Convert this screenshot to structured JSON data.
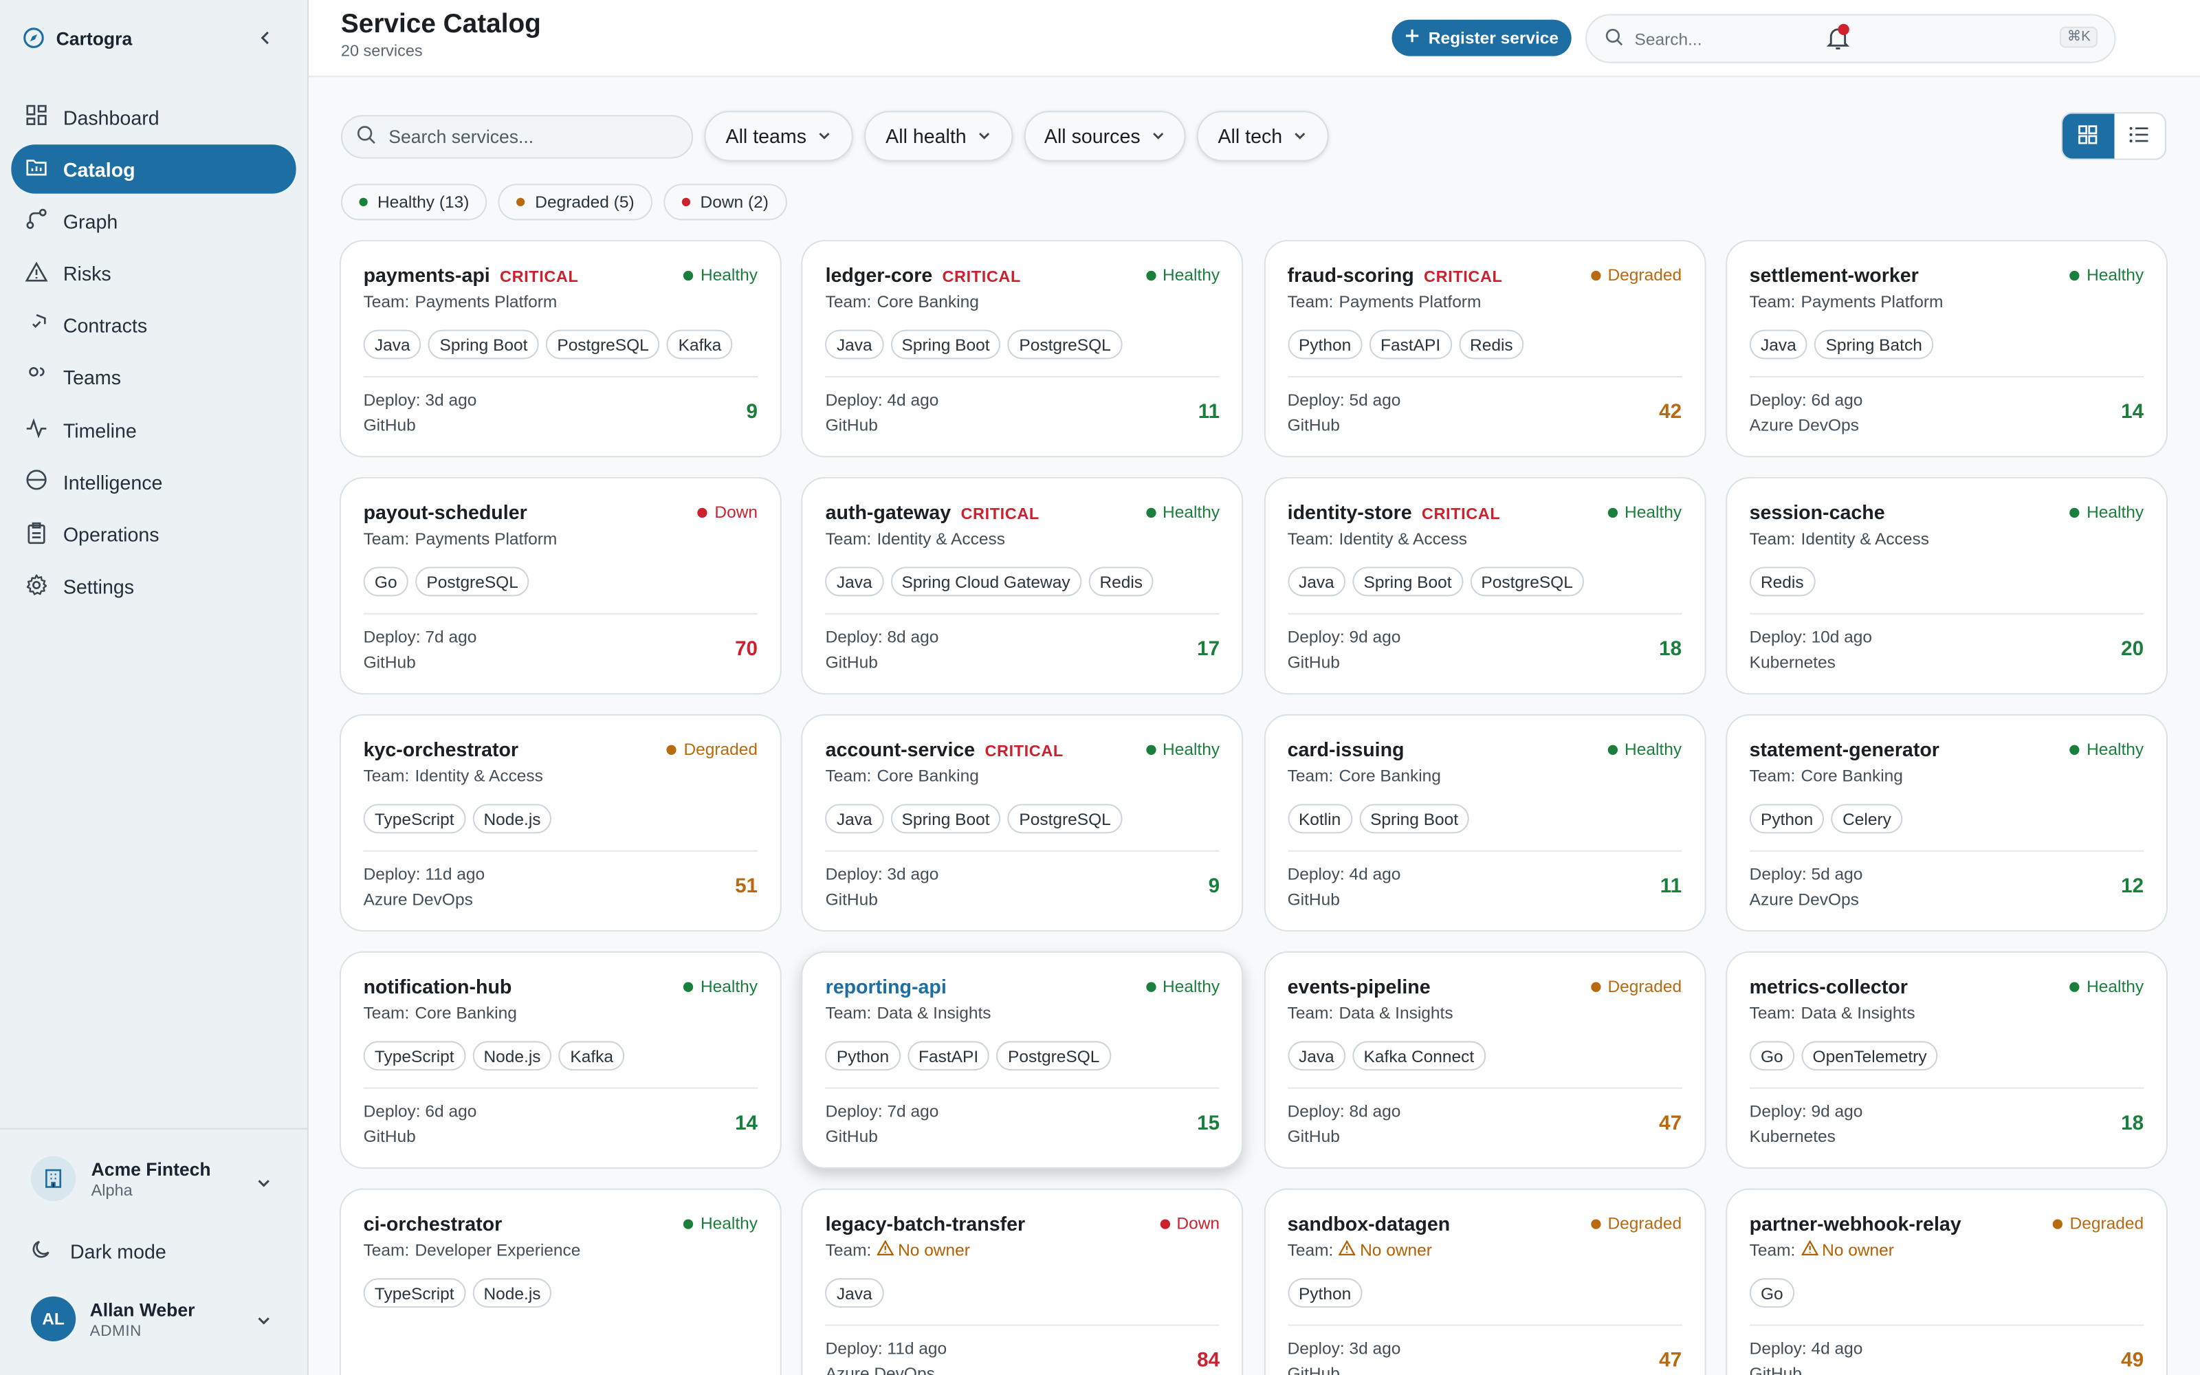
{
  "app": {
    "name": "Cartogra"
  },
  "sidebar": {
    "items": [
      {
        "label": "Dashboard",
        "icon": "dashboard-icon",
        "active": false
      },
      {
        "label": "Catalog",
        "icon": "catalog-icon",
        "active": true
      },
      {
        "label": "Graph",
        "icon": "graph-icon",
        "active": false
      },
      {
        "label": "Risks",
        "icon": "warning-icon",
        "active": false
      },
      {
        "label": "Contracts",
        "icon": "shield-icon",
        "active": false
      },
      {
        "label": "Teams",
        "icon": "users-icon",
        "active": false
      },
      {
        "label": "Timeline",
        "icon": "activity-icon",
        "active": false
      },
      {
        "label": "Intelligence",
        "icon": "globe-icon",
        "active": false
      },
      {
        "label": "Operations",
        "icon": "clipboard-icon",
        "active": false
      },
      {
        "label": "Settings",
        "icon": "gear-icon",
        "active": false
      }
    ],
    "org": {
      "name": "Acme Fintech",
      "sub": "Alpha"
    },
    "dark_mode_label": "Dark mode",
    "user": {
      "initials": "AL",
      "name": "Allan Weber",
      "role": "ADMIN"
    }
  },
  "header": {
    "title": "Service Catalog",
    "subtitle": "20 services",
    "register_label": "Register service",
    "search_placeholder": "Search...",
    "search_shortcut": "⌘K"
  },
  "filters": {
    "search_placeholder": "Search services...",
    "teams": "All teams",
    "health": "All health",
    "sources": "All sources",
    "tech": "All tech"
  },
  "health_chips": [
    {
      "label": "Healthy (13)",
      "color": "#1a7f3c"
    },
    {
      "label": "Degraded (5)",
      "color": "#b86a10"
    },
    {
      "label": "Down (2)",
      "color": "#cc2230"
    }
  ],
  "colors": {
    "accent": "#1d6fa3",
    "healthy": "#1a7f3c",
    "degraded": "#b86a10",
    "down": "#cc2230",
    "critical": "#cc2230",
    "warning": "#b35f00"
  },
  "services": [
    {
      "name": "payments-api",
      "critical": "CRITICAL",
      "health": "Healthy",
      "team_prefix": "Team: ",
      "team": "Payments Platform",
      "tags": [
        "Java",
        "Spring Boot",
        "PostgreSQL",
        "Kafka"
      ],
      "deploy": "Deploy: 3d ago",
      "source": "GitHub",
      "score": "9"
    },
    {
      "name": "ledger-core",
      "critical": "CRITICAL",
      "health": "Healthy",
      "team_prefix": "Team: ",
      "team": "Core Banking",
      "tags": [
        "Java",
        "Spring Boot",
        "PostgreSQL"
      ],
      "deploy": "Deploy: 4d ago",
      "source": "GitHub",
      "score": "11"
    },
    {
      "name": "fraud-scoring",
      "critical": "CRITICAL",
      "health": "Degraded",
      "team_prefix": "Team: ",
      "team": "Payments Platform",
      "tags": [
        "Python",
        "FastAPI",
        "Redis"
      ],
      "deploy": "Deploy: 5d ago",
      "source": "GitHub",
      "score": "42"
    },
    {
      "name": "settlement-worker",
      "critical": "",
      "health": "Healthy",
      "team_prefix": "Team: ",
      "team": "Payments Platform",
      "tags": [
        "Java",
        "Spring Batch"
      ],
      "deploy": "Deploy: 6d ago",
      "source": "Azure DevOps",
      "score": "14"
    },
    {
      "name": "payout-scheduler",
      "critical": "",
      "health": "Down",
      "team_prefix": "Team: ",
      "team": "Payments Platform",
      "tags": [
        "Go",
        "PostgreSQL"
      ],
      "deploy": "Deploy: 7d ago",
      "source": "GitHub",
      "score": "70"
    },
    {
      "name": "auth-gateway",
      "critical": "CRITICAL",
      "health": "Healthy",
      "team_prefix": "Team: ",
      "team": "Identity & Access",
      "tags": [
        "Java",
        "Spring Cloud Gateway",
        "Redis"
      ],
      "deploy": "Deploy: 8d ago",
      "source": "GitHub",
      "score": "17"
    },
    {
      "name": "identity-store",
      "critical": "CRITICAL",
      "health": "Healthy",
      "team_prefix": "Team: ",
      "team": "Identity & Access",
      "tags": [
        "Java",
        "Spring Boot",
        "PostgreSQL"
      ],
      "deploy": "Deploy: 9d ago",
      "source": "GitHub",
      "score": "18"
    },
    {
      "name": "session-cache",
      "critical": "",
      "health": "Healthy",
      "team_prefix": "Team: ",
      "team": "Identity & Access",
      "tags": [
        "Redis"
      ],
      "deploy": "Deploy: 10d ago",
      "source": "Kubernetes",
      "score": "20"
    },
    {
      "name": "kyc-orchestrator",
      "critical": "",
      "health": "Degraded",
      "team_prefix": "Team: ",
      "team": "Identity & Access",
      "tags": [
        "TypeScript",
        "Node.js"
      ],
      "deploy": "Deploy: 11d ago",
      "source": "Azure DevOps",
      "score": "51"
    },
    {
      "name": "account-service",
      "critical": "CRITICAL",
      "health": "Healthy",
      "team_prefix": "Team: ",
      "team": "Core Banking",
      "tags": [
        "Java",
        "Spring Boot",
        "PostgreSQL"
      ],
      "deploy": "Deploy: 3d ago",
      "source": "GitHub",
      "score": "9"
    },
    {
      "name": "card-issuing",
      "critical": "",
      "health": "Healthy",
      "team_prefix": "Team: ",
      "team": "Core Banking",
      "tags": [
        "Kotlin",
        "Spring Boot"
      ],
      "deploy": "Deploy: 4d ago",
      "source": "GitHub",
      "score": "11"
    },
    {
      "name": "statement-generator",
      "critical": "",
      "health": "Healthy",
      "team_prefix": "Team: ",
      "team": "Core Banking",
      "tags": [
        "Python",
        "Celery"
      ],
      "deploy": "Deploy: 5d ago",
      "source": "Azure DevOps",
      "score": "12"
    },
    {
      "name": "notification-hub",
      "critical": "",
      "health": "Healthy",
      "team_prefix": "Team: ",
      "team": "Core Banking",
      "tags": [
        "TypeScript",
        "Node.js",
        "Kafka"
      ],
      "deploy": "Deploy: 6d ago",
      "source": "GitHub",
      "score": "14"
    },
    {
      "name": "reporting-api",
      "critical": "",
      "health": "Healthy",
      "team_prefix": "Team: ",
      "team": "Data & Insights",
      "tags": [
        "Python",
        "FastAPI",
        "PostgreSQL"
      ],
      "deploy": "Deploy: 7d ago",
      "source": "GitHub",
      "score": "15",
      "hovered": true
    },
    {
      "name": "events-pipeline",
      "critical": "",
      "health": "Degraded",
      "team_prefix": "Team: ",
      "team": "Data & Insights",
      "tags": [
        "Java",
        "Kafka Connect"
      ],
      "deploy": "Deploy: 8d ago",
      "source": "GitHub",
      "score": "47"
    },
    {
      "name": "metrics-collector",
      "critical": "",
      "health": "Healthy",
      "team_prefix": "Team: ",
      "team": "Data & Insights",
      "tags": [
        "Go",
        "OpenTelemetry"
      ],
      "deploy": "Deploy: 9d ago",
      "source": "Kubernetes",
      "score": "18"
    },
    {
      "name": "ci-orchestrator",
      "critical": "",
      "health": "Healthy",
      "team_prefix": "Team: ",
      "team": "Developer Experience",
      "tags": [
        "TypeScript",
        "Node.js"
      ],
      "deploy": "",
      "source": "",
      "score": ""
    },
    {
      "name": "legacy-batch-transfer",
      "critical": "",
      "health": "Down",
      "team_prefix": "Team: ",
      "team": "No owner",
      "no_owner": true,
      "tags": [
        "Java"
      ],
      "deploy": "Deploy: 11d ago",
      "source": "Azure DevOps",
      "score": "84"
    },
    {
      "name": "sandbox-datagen",
      "critical": "",
      "health": "Degraded",
      "team_prefix": "Team: ",
      "team": "No owner",
      "no_owner": true,
      "tags": [
        "Python"
      ],
      "deploy": "Deploy: 3d ago",
      "source": "GitHub",
      "score": "47"
    },
    {
      "name": "partner-webhook-relay",
      "critical": "",
      "health": "Degraded",
      "team_prefix": "Team: ",
      "team": "No owner",
      "no_owner": true,
      "tags": [
        "Go"
      ],
      "deploy": "Deploy: 4d ago",
      "source": "GitHub",
      "score": "49"
    }
  ]
}
